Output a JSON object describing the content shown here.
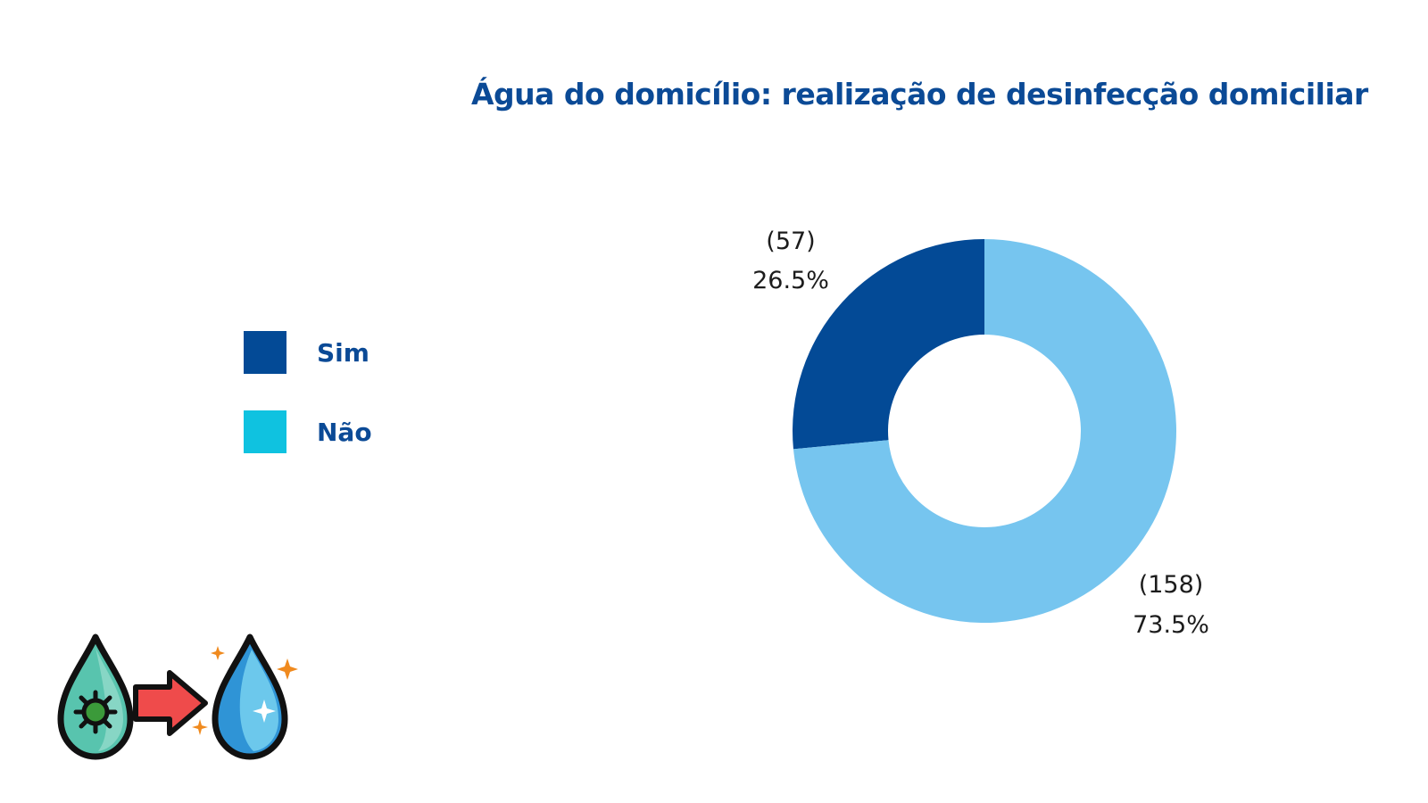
{
  "chart_data": {
    "type": "pie",
    "title": "Água do domicílio: realização de desinfecção domiciliar",
    "donut": true,
    "categories": [
      "Sim",
      "Não"
    ],
    "values": [
      57,
      158
    ],
    "percent_labels": [
      "26.5%",
      "73.5%"
    ],
    "count_labels": [
      "(57)",
      "(158)"
    ],
    "colors": [
      "#034a96",
      "#76c5ef"
    ],
    "legend": {
      "placement": "left",
      "entries": [
        {
          "label": "Sim",
          "color": "#034a96"
        },
        {
          "label": "Não",
          "color": "#0fc2e0"
        }
      ]
    }
  },
  "illustration": {
    "icons": [
      "contaminated-water-drop-icon",
      "arrow-right-icon",
      "clean-water-drop-icon",
      "sparkle-icon"
    ]
  }
}
